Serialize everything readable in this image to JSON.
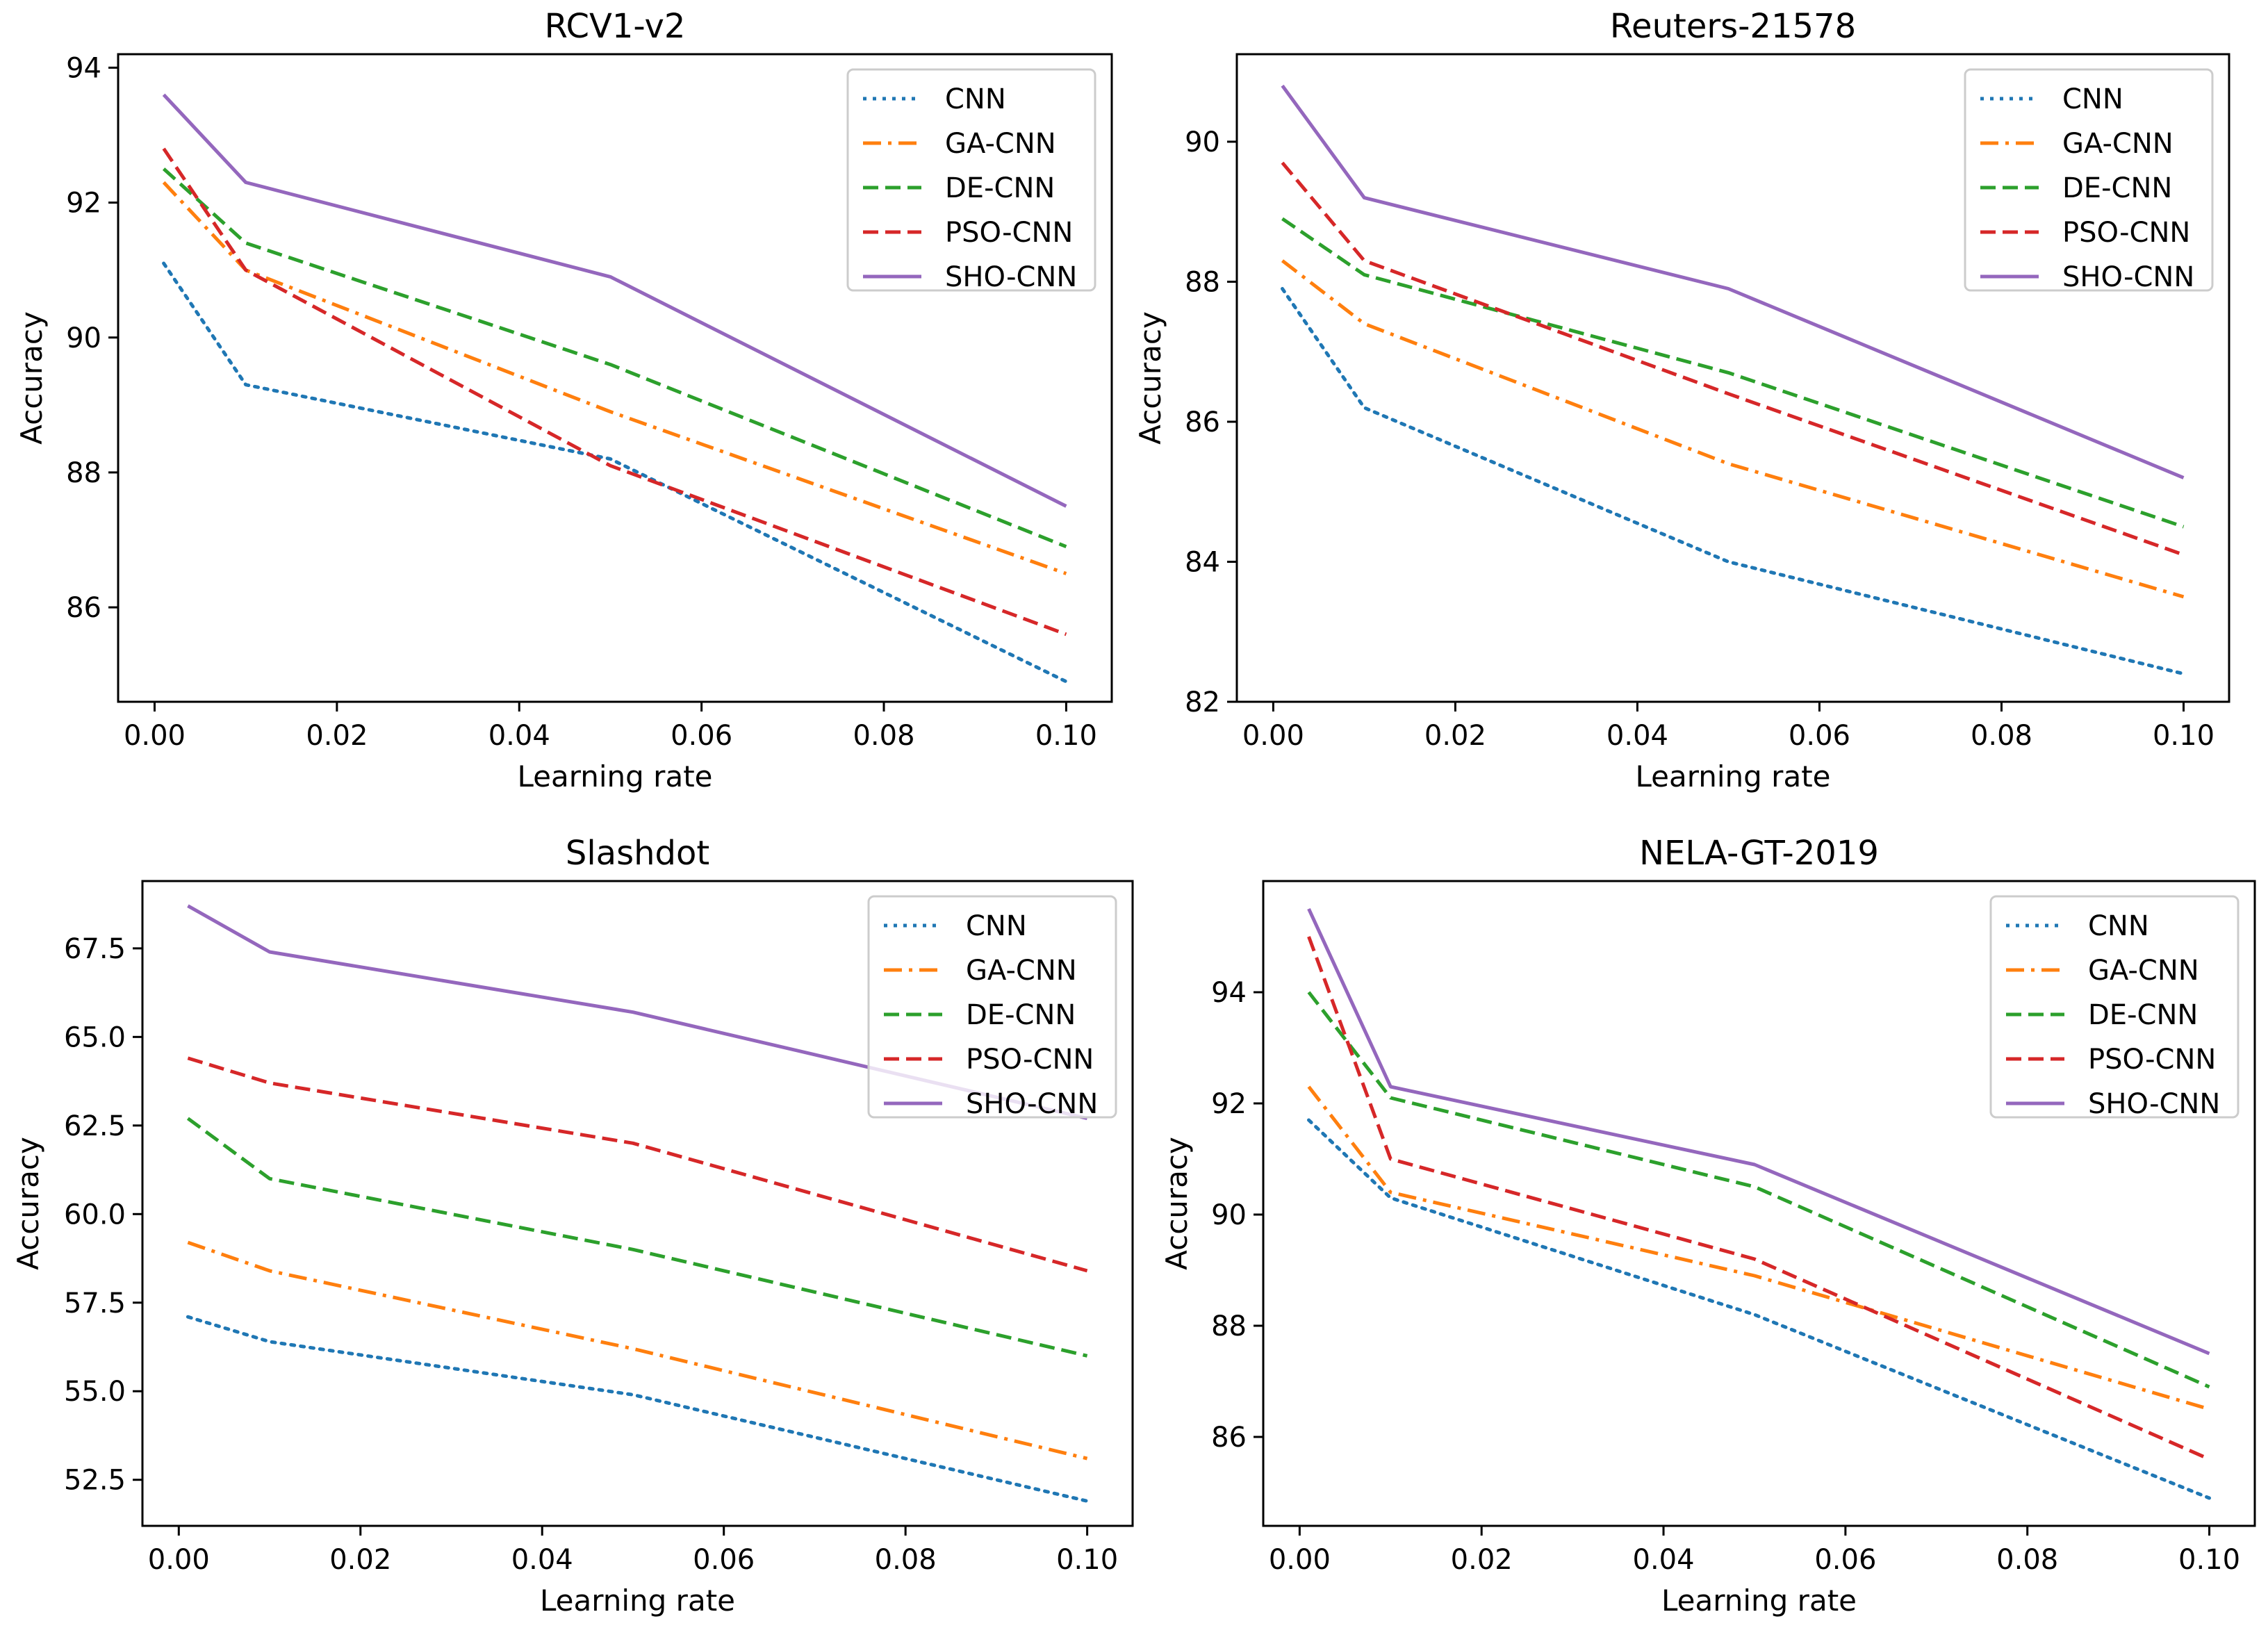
{
  "chart_data": [
    {
      "type": "line",
      "title": "RCV1-v2",
      "xlabel": "Learning rate",
      "ylabel": "Accuracy",
      "xlim": [
        -0.004,
        0.105
      ],
      "ylim": [
        84.6,
        94.2
      ],
      "xticks": [
        0.0,
        0.02,
        0.04,
        0.06,
        0.08,
        0.1
      ],
      "xtick_labels": [
        "0.00",
        "0.02",
        "0.04",
        "0.06",
        "0.08",
        "0.10"
      ],
      "yticks": [
        86,
        88,
        90,
        92,
        94
      ],
      "ytick_labels": [
        "86",
        "88",
        "90",
        "92",
        "94"
      ],
      "legend_position": "top-right",
      "x": [
        0.001,
        0.01,
        0.05,
        0.1
      ],
      "series": [
        {
          "name": "CNN",
          "values": [
            91.1,
            89.3,
            88.2,
            84.9
          ],
          "color": "#1f77b4",
          "style": "dotted"
        },
        {
          "name": "GA-CNN",
          "values": [
            92.3,
            91.0,
            88.9,
            86.5
          ],
          "color": "#ff7f0e",
          "style": "dashdot"
        },
        {
          "name": "DE-CNN",
          "values": [
            92.5,
            91.4,
            89.6,
            86.9
          ],
          "color": "#2ca02c",
          "style": "dashed"
        },
        {
          "name": "PSO-CNN",
          "values": [
            92.8,
            91.0,
            88.1,
            85.6
          ],
          "color": "#d62728",
          "style": "dashed"
        },
        {
          "name": "SHO-CNN",
          "values": [
            93.6,
            92.3,
            90.9,
            87.5
          ],
          "color": "#9467bd",
          "style": "solid"
        }
      ]
    },
    {
      "type": "line",
      "title": "Reuters-21578",
      "xlabel": "Learning rate",
      "ylabel": "Accuracy",
      "xlim": [
        -0.004,
        0.105
      ],
      "ylim": [
        82.0,
        91.25
      ],
      "xticks": [
        0.0,
        0.02,
        0.04,
        0.06,
        0.08,
        0.1
      ],
      "xtick_labels": [
        "0.00",
        "0.02",
        "0.04",
        "0.06",
        "0.08",
        "0.10"
      ],
      "yticks": [
        82,
        84,
        86,
        88,
        90
      ],
      "ytick_labels": [
        "82",
        "84",
        "86",
        "88",
        "90"
      ],
      "legend_position": "top-right",
      "x": [
        0.001,
        0.01,
        0.05,
        0.1
      ],
      "series": [
        {
          "name": "CNN",
          "values": [
            87.9,
            86.2,
            84.0,
            82.4
          ],
          "color": "#1f77b4",
          "style": "dotted"
        },
        {
          "name": "GA-CNN",
          "values": [
            88.3,
            87.4,
            85.4,
            83.5
          ],
          "color": "#ff7f0e",
          "style": "dashdot"
        },
        {
          "name": "DE-CNN",
          "values": [
            88.9,
            88.1,
            86.7,
            84.5
          ],
          "color": "#2ca02c",
          "style": "dashed"
        },
        {
          "name": "PSO-CNN",
          "values": [
            89.7,
            88.3,
            86.4,
            84.1
          ],
          "color": "#d62728",
          "style": "dashed"
        },
        {
          "name": "SHO-CNN",
          "values": [
            90.8,
            89.2,
            87.9,
            85.2
          ],
          "color": "#9467bd",
          "style": "solid"
        }
      ]
    },
    {
      "type": "line",
      "title": "Slashdot",
      "xlabel": "Learning rate",
      "ylabel": "Accuracy",
      "xlim": [
        -0.004,
        0.105
      ],
      "ylim": [
        51.2,
        69.4
      ],
      "xticks": [
        0.0,
        0.02,
        0.04,
        0.06,
        0.08,
        0.1
      ],
      "xtick_labels": [
        "0.00",
        "0.02",
        "0.04",
        "0.06",
        "0.08",
        "0.10"
      ],
      "yticks": [
        52.5,
        55.0,
        57.5,
        60.0,
        62.5,
        65.0,
        67.5
      ],
      "ytick_labels": [
        "52.5",
        "55.0",
        "57.5",
        "60.0",
        "62.5",
        "65.0",
        "67.5"
      ],
      "legend_position": "top-right",
      "x": [
        0.001,
        0.01,
        0.05,
        0.1
      ],
      "series": [
        {
          "name": "CNN",
          "values": [
            57.1,
            56.4,
            54.9,
            51.9
          ],
          "color": "#1f77b4",
          "style": "dotted"
        },
        {
          "name": "GA-CNN",
          "values": [
            59.2,
            58.4,
            56.2,
            53.1
          ],
          "color": "#ff7f0e",
          "style": "dashdot"
        },
        {
          "name": "DE-CNN",
          "values": [
            62.7,
            61.0,
            59.0,
            56.0
          ],
          "color": "#2ca02c",
          "style": "dashed"
        },
        {
          "name": "PSO-CNN",
          "values": [
            64.4,
            63.7,
            62.0,
            58.4
          ],
          "color": "#d62728",
          "style": "dashed"
        },
        {
          "name": "SHO-CNN",
          "values": [
            68.7,
            67.4,
            65.7,
            62.7
          ],
          "color": "#9467bd",
          "style": "solid"
        }
      ]
    },
    {
      "type": "line",
      "title": "NELA-GT-2019",
      "xlabel": "Learning rate",
      "ylabel": "Accuracy",
      "xlim": [
        -0.004,
        0.105
      ],
      "ylim": [
        84.4,
        96.0
      ],
      "xticks": [
        0.0,
        0.02,
        0.04,
        0.06,
        0.08,
        0.1
      ],
      "xtick_labels": [
        "0.00",
        "0.02",
        "0.04",
        "0.06",
        "0.08",
        "0.10"
      ],
      "yticks": [
        86,
        88,
        90,
        92,
        94
      ],
      "ytick_labels": [
        "86",
        "88",
        "90",
        "92",
        "94"
      ],
      "legend_position": "top-right",
      "x": [
        0.001,
        0.01,
        0.05,
        0.1
      ],
      "series": [
        {
          "name": "CNN",
          "values": [
            91.7,
            90.3,
            88.2,
            84.9
          ],
          "color": "#1f77b4",
          "style": "dotted"
        },
        {
          "name": "GA-CNN",
          "values": [
            92.3,
            90.4,
            88.9,
            86.5
          ],
          "color": "#ff7f0e",
          "style": "dashdot"
        },
        {
          "name": "DE-CNN",
          "values": [
            94.0,
            92.1,
            90.5,
            86.9
          ],
          "color": "#2ca02c",
          "style": "dashed"
        },
        {
          "name": "PSO-CNN",
          "values": [
            95.0,
            91.0,
            89.2,
            85.6
          ],
          "color": "#d62728",
          "style": "dashed"
        },
        {
          "name": "SHO-CNN",
          "values": [
            95.5,
            92.3,
            90.9,
            87.5
          ],
          "color": "#9467bd",
          "style": "solid"
        }
      ]
    }
  ]
}
